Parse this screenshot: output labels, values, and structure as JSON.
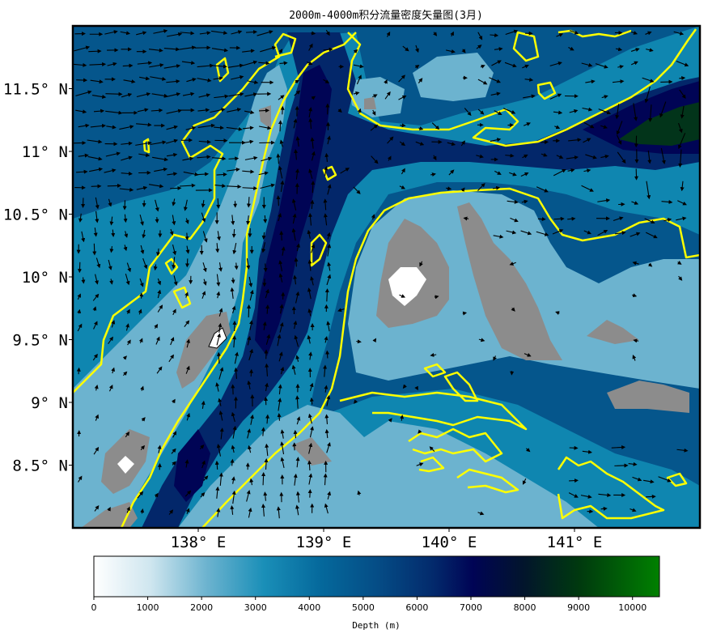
{
  "chart_data": {
    "type": "heatmap",
    "title": "2000m-4000m积分流量密度矢量图(3月)",
    "x_ticks": [
      {
        "value": 138,
        "label": "138° E"
      },
      {
        "value": 139,
        "label": "139° E"
      },
      {
        "value": 140,
        "label": "140° E"
      },
      {
        "value": 141,
        "label": "141° E"
      }
    ],
    "y_ticks": [
      {
        "value": 8.5,
        "label": "8.5° N"
      },
      {
        "value": 9,
        "label": "9° N"
      },
      {
        "value": 9.5,
        "label": "9.5° N"
      },
      {
        "value": 10,
        "label": "10° N"
      },
      {
        "value": 10.5,
        "label": "10.5° N"
      },
      {
        "value": 11,
        "label": "11° N"
      },
      {
        "value": 11.5,
        "label": "11.5° N"
      }
    ],
    "xlim": [
      137,
      142
    ],
    "ylim": [
      8,
      12
    ],
    "colorbar": {
      "label": "Depth (m)",
      "range": [
        0,
        10500
      ],
      "ticks": [
        0,
        1000,
        2000,
        3000,
        4000,
        5000,
        6000,
        7000,
        8000,
        9000,
        10000
      ],
      "colors": [
        "#ffffff",
        "#6cb3cf",
        "#0f86b0",
        "#05568c",
        "#03276a",
        "#000455",
        "#02341a",
        "#008000"
      ]
    },
    "contour_color": "#ffff00",
    "land_color": "#8c8c8c"
  }
}
